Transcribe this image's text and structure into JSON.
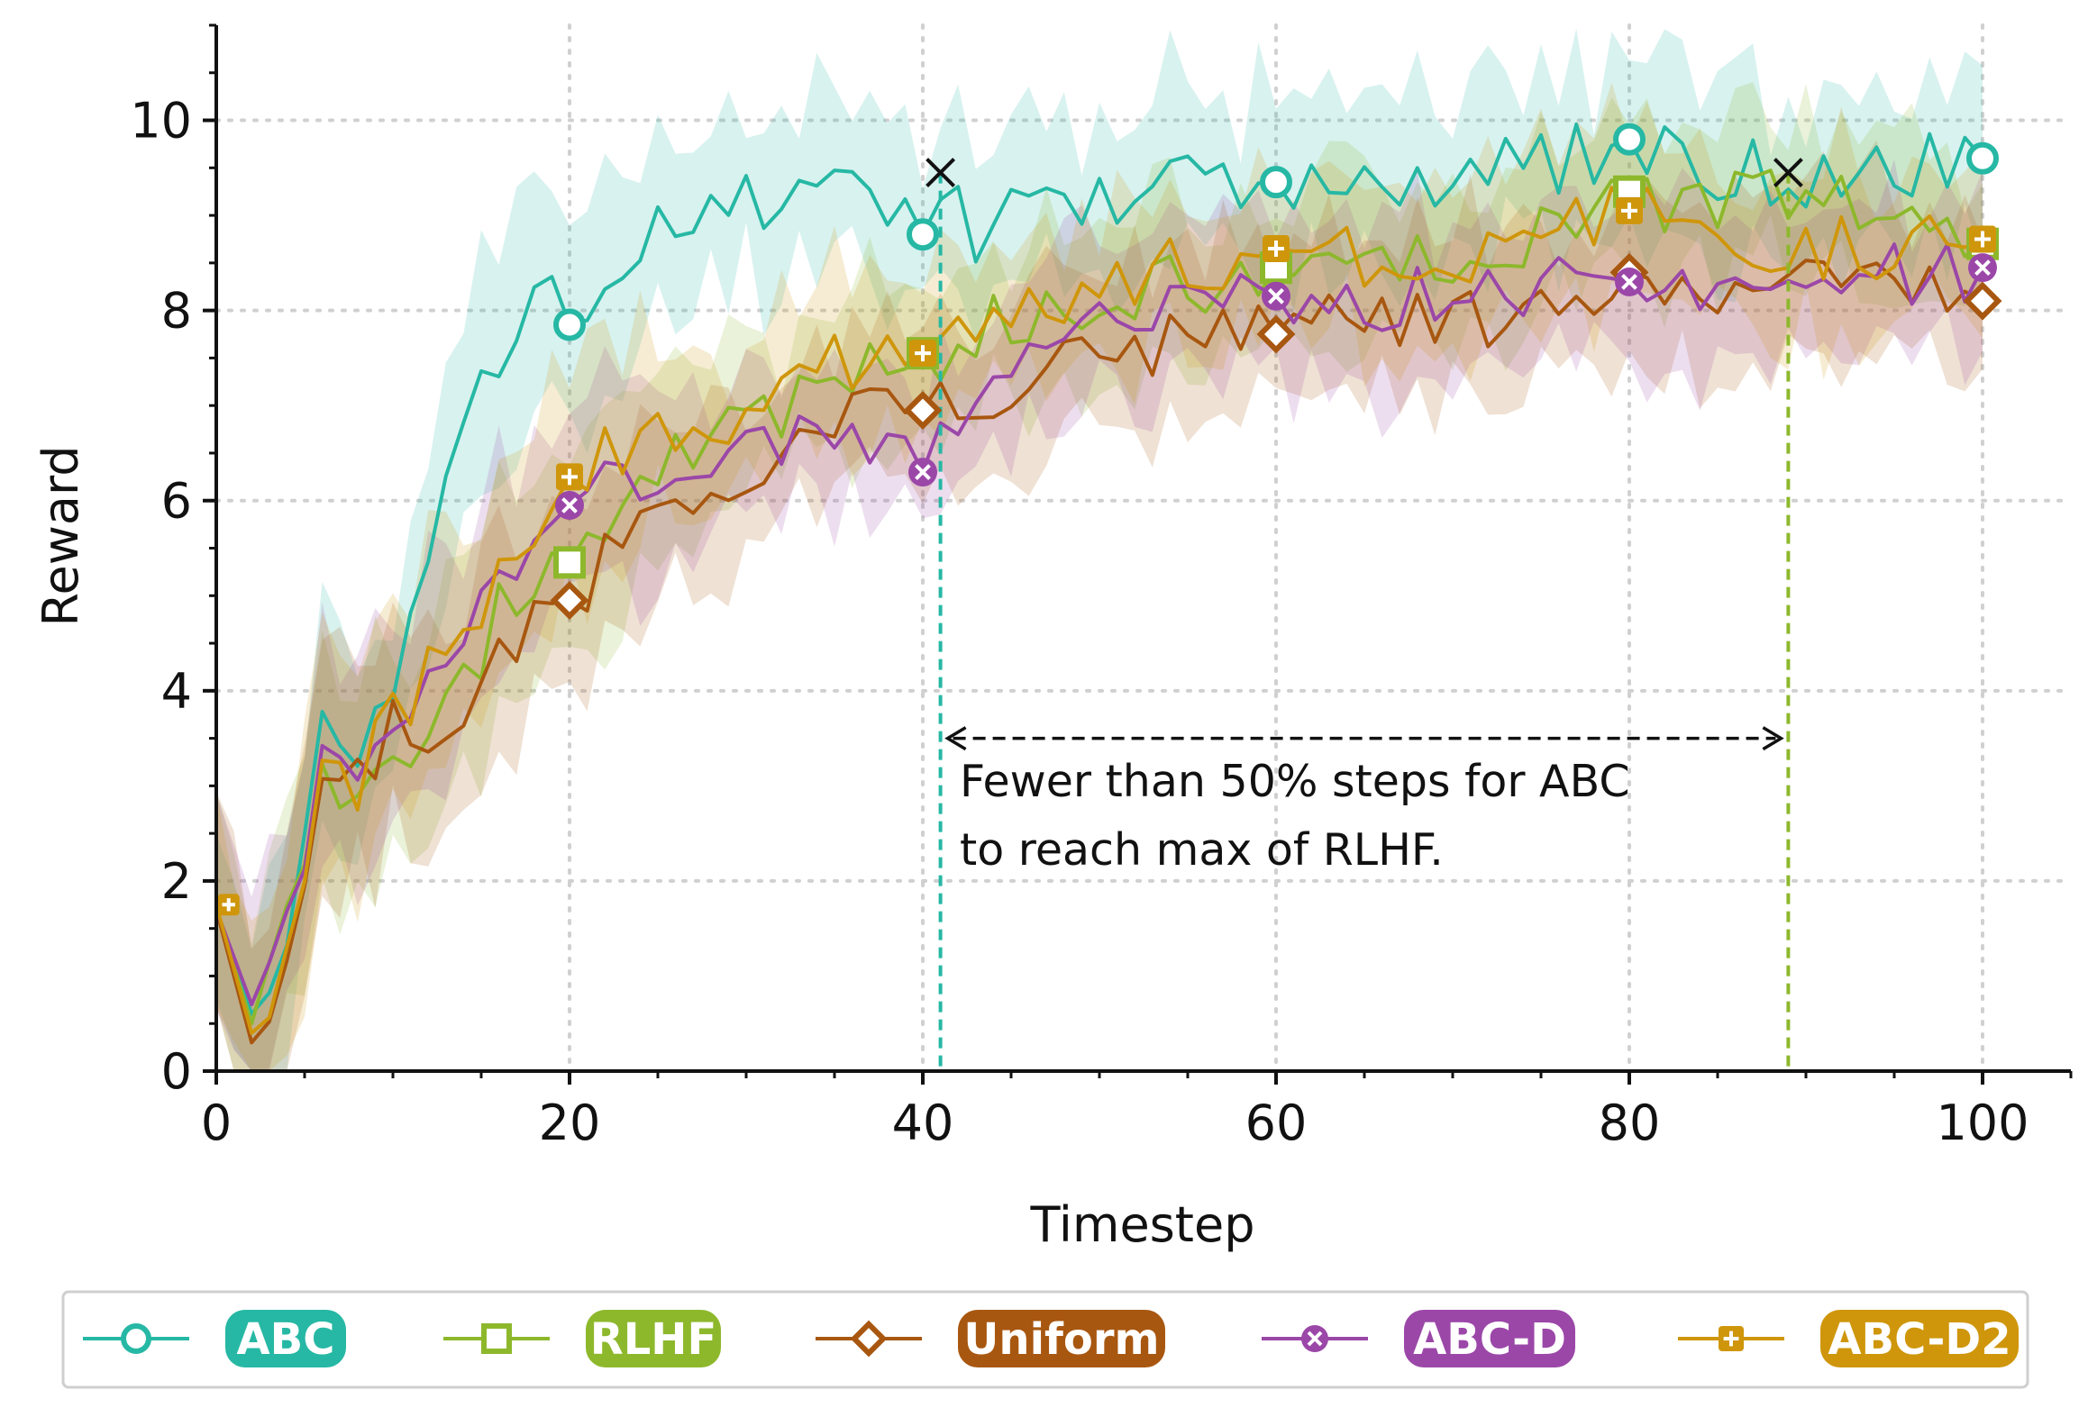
{
  "chart_data": {
    "type": "line",
    "xlabel": "Timestep",
    "ylabel": "Reward",
    "xlim": [
      0,
      105
    ],
    "ylim": [
      0,
      11
    ],
    "x_ticks": [
      "0",
      "20",
      "40",
      "60",
      "80",
      "100"
    ],
    "y_ticks": [
      "0",
      "2",
      "4",
      "6",
      "8",
      "10"
    ],
    "grid": "dotted",
    "legend_position": "bottom",
    "annotation": {
      "lines": [
        "Fewer than 50% steps for ABC",
        "to reach max of RLHF."
      ],
      "from_x": 41,
      "to_x": 89,
      "arrow_y": 3.5
    },
    "reference_lines": [
      {
        "series": "ABC",
        "x": 41,
        "y": 9.45
      },
      {
        "series": "RLHF",
        "x": 89,
        "y": 9.45
      }
    ],
    "series": [
      {
        "name": "ABC",
        "color": "#26b8a4",
        "marker": "circle",
        "waypoints": [
          [
            0,
            1.7
          ],
          [
            2,
            0.6
          ],
          [
            4,
            1.6
          ],
          [
            6,
            3.6
          ],
          [
            8,
            3.5
          ],
          [
            10,
            4.3
          ],
          [
            12,
            5.6
          ],
          [
            14,
            6.6
          ],
          [
            16,
            7.6
          ],
          [
            18,
            8.2
          ],
          [
            20,
            7.9
          ],
          [
            22,
            8.5
          ],
          [
            24,
            8.7
          ],
          [
            26,
            9.0
          ],
          [
            28,
            9.0
          ],
          [
            30,
            9.1
          ],
          [
            33,
            9.1
          ],
          [
            36,
            9.2
          ],
          [
            40,
            8.8
          ],
          [
            41,
            9.4
          ],
          [
            43,
            8.8
          ],
          [
            46,
            9.0
          ],
          [
            50,
            9.2
          ],
          [
            55,
            9.3
          ],
          [
            60,
            9.4
          ],
          [
            65,
            9.4
          ],
          [
            70,
            9.4
          ],
          [
            75,
            9.5
          ],
          [
            80,
            9.8
          ],
          [
            85,
            9.5
          ],
          [
            90,
            9.4
          ],
          [
            95,
            9.5
          ],
          [
            100,
            9.6
          ]
        ],
        "marker_values": [
          [
            20,
            7.85
          ],
          [
            40,
            8.8
          ],
          [
            60,
            9.35
          ],
          [
            80,
            9.8
          ],
          [
            100,
            9.6
          ]
        ]
      },
      {
        "name": "RLHF",
        "color": "#8db82c",
        "marker": "square",
        "waypoints": [
          [
            0,
            1.7
          ],
          [
            2,
            0.5
          ],
          [
            4,
            1.6
          ],
          [
            6,
            3.0
          ],
          [
            8,
            2.6
          ],
          [
            10,
            3.3
          ],
          [
            12,
            3.4
          ],
          [
            14,
            3.9
          ],
          [
            16,
            4.8
          ],
          [
            18,
            5.2
          ],
          [
            20,
            5.3
          ],
          [
            22,
            5.9
          ],
          [
            24,
            6.2
          ],
          [
            26,
            6.4
          ],
          [
            28,
            6.6
          ],
          [
            30,
            6.9
          ],
          [
            32,
            7.0
          ],
          [
            34,
            7.1
          ],
          [
            36,
            7.2
          ],
          [
            38,
            7.6
          ],
          [
            40,
            7.6
          ],
          [
            42,
            7.6
          ],
          [
            44,
            7.9
          ],
          [
            46,
            8.0
          ],
          [
            50,
            8.2
          ],
          [
            55,
            8.3
          ],
          [
            60,
            8.4
          ],
          [
            65,
            8.6
          ],
          [
            70,
            8.6
          ],
          [
            75,
            8.8
          ],
          [
            80,
            9.2
          ],
          [
            85,
            9.1
          ],
          [
            89,
            9.3
          ],
          [
            95,
            9.0
          ],
          [
            100,
            8.7
          ]
        ],
        "marker_values": [
          [
            20,
            5.35
          ],
          [
            40,
            7.55
          ],
          [
            60,
            8.45
          ],
          [
            80,
            9.25
          ],
          [
            100,
            8.7
          ]
        ]
      },
      {
        "name": "Uniform",
        "color": "#a85710",
        "marker": "diamond",
        "waypoints": [
          [
            0,
            1.7
          ],
          [
            2,
            0.3
          ],
          [
            4,
            1.4
          ],
          [
            6,
            2.8
          ],
          [
            8,
            3.2
          ],
          [
            10,
            3.5
          ],
          [
            12,
            3.7
          ],
          [
            14,
            3.9
          ],
          [
            16,
            4.3
          ],
          [
            18,
            4.7
          ],
          [
            20,
            4.95
          ],
          [
            22,
            5.3
          ],
          [
            24,
            5.6
          ],
          [
            26,
            5.9
          ],
          [
            28,
            6.1
          ],
          [
            30,
            6.3
          ],
          [
            32,
            6.4
          ],
          [
            34,
            6.6
          ],
          [
            36,
            6.8
          ],
          [
            38,
            6.9
          ],
          [
            40,
            6.95
          ],
          [
            42,
            7.0
          ],
          [
            44,
            7.1
          ],
          [
            46,
            7.3
          ],
          [
            50,
            7.5
          ],
          [
            55,
            7.7
          ],
          [
            60,
            7.75
          ],
          [
            65,
            7.9
          ],
          [
            70,
            7.9
          ],
          [
            75,
            8.0
          ],
          [
            80,
            8.4
          ],
          [
            85,
            8.1
          ],
          [
            90,
            8.2
          ],
          [
            95,
            8.2
          ],
          [
            100,
            8.1
          ]
        ],
        "marker_values": [
          [
            20,
            4.95
          ],
          [
            40,
            6.95
          ],
          [
            60,
            7.75
          ],
          [
            80,
            8.4
          ],
          [
            100,
            8.1
          ]
        ]
      },
      {
        "name": "ABC-D",
        "color": "#9b47a8",
        "marker": "x",
        "waypoints": [
          [
            0,
            1.7
          ],
          [
            2,
            0.7
          ],
          [
            4,
            1.5
          ],
          [
            6,
            3.1
          ],
          [
            8,
            3.2
          ],
          [
            10,
            3.6
          ],
          [
            12,
            4.2
          ],
          [
            14,
            4.6
          ],
          [
            16,
            5.1
          ],
          [
            18,
            5.6
          ],
          [
            20,
            5.95
          ],
          [
            22,
            6.1
          ],
          [
            24,
            6.2
          ],
          [
            26,
            6.3
          ],
          [
            28,
            6.4
          ],
          [
            30,
            6.5
          ],
          [
            32,
            6.6
          ],
          [
            34,
            6.7
          ],
          [
            36,
            6.8
          ],
          [
            38,
            6.6
          ],
          [
            40,
            6.3
          ],
          [
            42,
            7.0
          ],
          [
            44,
            7.3
          ],
          [
            46,
            7.6
          ],
          [
            50,
            7.8
          ],
          [
            55,
            8.0
          ],
          [
            60,
            8.15
          ],
          [
            65,
            8.1
          ],
          [
            70,
            8.1
          ],
          [
            75,
            8.2
          ],
          [
            80,
            8.3
          ],
          [
            85,
            8.3
          ],
          [
            90,
            8.3
          ],
          [
            95,
            8.4
          ],
          [
            100,
            8.45
          ]
        ],
        "marker_values": [
          [
            20,
            5.95
          ],
          [
            40,
            6.3
          ],
          [
            60,
            8.15
          ],
          [
            80,
            8.3
          ],
          [
            100,
            8.45
          ]
        ]
      },
      {
        "name": "ABC-D2",
        "color": "#cf960b",
        "marker": "plus",
        "waypoints": [
          [
            0,
            1.75
          ],
          [
            2,
            0.4
          ],
          [
            4,
            1.5
          ],
          [
            6,
            2.9
          ],
          [
            8,
            3.1
          ],
          [
            10,
            3.6
          ],
          [
            12,
            4.1
          ],
          [
            14,
            4.6
          ],
          [
            16,
            5.3
          ],
          [
            18,
            5.8
          ],
          [
            20,
            6.25
          ],
          [
            22,
            6.5
          ],
          [
            24,
            6.7
          ],
          [
            26,
            6.8
          ],
          [
            28,
            6.9
          ],
          [
            30,
            7.0
          ],
          [
            32,
            7.1
          ],
          [
            34,
            7.3
          ],
          [
            36,
            7.5
          ],
          [
            38,
            7.8
          ],
          [
            40,
            7.6
          ],
          [
            42,
            7.7
          ],
          [
            44,
            7.8
          ],
          [
            46,
            8.0
          ],
          [
            50,
            8.3
          ],
          [
            55,
            8.5
          ],
          [
            60,
            8.65
          ],
          [
            65,
            8.6
          ],
          [
            70,
            8.6
          ],
          [
            75,
            8.7
          ],
          [
            80,
            9.05
          ],
          [
            85,
            8.7
          ],
          [
            90,
            8.6
          ],
          [
            95,
            8.7
          ],
          [
            100,
            8.75
          ]
        ],
        "marker_values": [
          [
            20,
            6.25
          ],
          [
            40,
            7.55
          ],
          [
            60,
            8.65
          ],
          [
            80,
            9.05
          ],
          [
            100,
            8.75
          ]
        ]
      }
    ]
  }
}
